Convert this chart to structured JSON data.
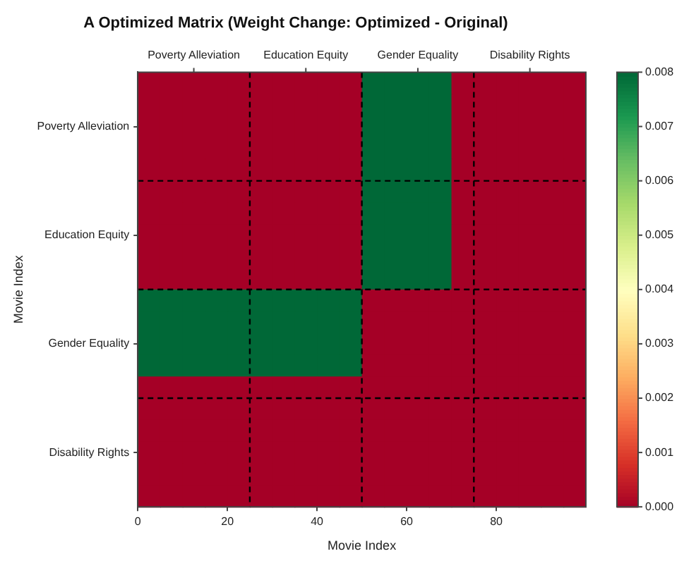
{
  "chart_data": {
    "type": "heatmap",
    "title": "A Optimized Matrix (Weight Change: Optimized - Original)",
    "xlabel": "Movie Index",
    "ylabel": "Movie Index",
    "annotations": [
      "Poverty Alleviation",
      "Education Equity",
      "Gender Equality",
      "Disability Rights"
    ],
    "x": [
      2.5,
      7.5,
      12.5,
      17.5,
      22.5,
      27.5,
      32.5,
      37.5,
      42.5,
      47.5,
      52.5,
      57.5,
      62.5,
      67.5,
      72.5,
      77.5,
      82.5,
      87.5,
      92.5,
      97.5
    ],
    "y_categories": [
      null,
      null,
      "Poverty Alleviation",
      null,
      null,
      null,
      null,
      "Education Equity",
      null,
      null,
      null,
      null,
      "Gender Equality",
      null,
      null,
      null,
      null,
      "Disability Rights",
      null,
      null
    ],
    "cells": [
      [
        0,
        0,
        0,
        0,
        0,
        0,
        0,
        0,
        0,
        0,
        0.008,
        0.008,
        0.008,
        0.008,
        0,
        0,
        0,
        0,
        0,
        0
      ],
      [
        0,
        0,
        0,
        0,
        0,
        0,
        0,
        0,
        0,
        0,
        0.008,
        0.008,
        0.008,
        0.008,
        0,
        0,
        0,
        0,
        0,
        0
      ],
      [
        0,
        0,
        0,
        0,
        0,
        0,
        0,
        0,
        0,
        0,
        0.008,
        0.008,
        0.008,
        0.008,
        0,
        0,
        0,
        0,
        0,
        0
      ],
      [
        0,
        0,
        0,
        0,
        0,
        0,
        0,
        0,
        0,
        0,
        0.008,
        0.008,
        0.008,
        0.008,
        0,
        0,
        0,
        0,
        0,
        0
      ],
      [
        0,
        0,
        0,
        0,
        0,
        0,
        0,
        0,
        0,
        0,
        0.008,
        0.008,
        0.008,
        0.008,
        0,
        0,
        0,
        0,
        0,
        0
      ],
      [
        0,
        0,
        0,
        0,
        0,
        0,
        0,
        0,
        0,
        0,
        0.008,
        0.008,
        0.008,
        0.008,
        0,
        0,
        0,
        0,
        0,
        0
      ],
      [
        0,
        0,
        0,
        0,
        0,
        0,
        0,
        0,
        0,
        0,
        0.008,
        0.008,
        0.008,
        0.008,
        0,
        0,
        0,
        0,
        0,
        0
      ],
      [
        0,
        0,
        0,
        0,
        0,
        0,
        0,
        0,
        0,
        0,
        0.008,
        0.008,
        0.008,
        0.008,
        0,
        0,
        0,
        0,
        0,
        0
      ],
      [
        0,
        0,
        0,
        0,
        0,
        0,
        0,
        0,
        0,
        0,
        0.008,
        0.008,
        0.008,
        0.008,
        0,
        0,
        0,
        0,
        0,
        0
      ],
      [
        0,
        0,
        0,
        0,
        0,
        0,
        0,
        0,
        0,
        0,
        0.008,
        0.008,
        0.008,
        0.008,
        0,
        0,
        0,
        0,
        0,
        0
      ],
      [
        0.008,
        0.008,
        0.008,
        0.008,
        0.008,
        0.008,
        0.008,
        0.008,
        0.008,
        0.008,
        0,
        0,
        0,
        0,
        0,
        0,
        0,
        0,
        0,
        0
      ],
      [
        0.008,
        0.008,
        0.008,
        0.008,
        0.008,
        0.008,
        0.008,
        0.008,
        0.008,
        0.008,
        0,
        0,
        0,
        0,
        0,
        0,
        0,
        0,
        0,
        0
      ],
      [
        0.008,
        0.008,
        0.008,
        0.008,
        0.008,
        0.008,
        0.008,
        0.008,
        0.008,
        0.008,
        0,
        0,
        0,
        0,
        0,
        0,
        0,
        0,
        0,
        0
      ],
      [
        0.008,
        0.008,
        0.008,
        0.008,
        0.008,
        0.008,
        0.008,
        0.008,
        0.008,
        0.008,
        0,
        0,
        0,
        0,
        0,
        0,
        0,
        0,
        0,
        0
      ],
      [
        0,
        0,
        0,
        0,
        0,
        0,
        0,
        0,
        0,
        0,
        0,
        0,
        0,
        0,
        0,
        0,
        0,
        0,
        0,
        0
      ],
      [
        0,
        0,
        0,
        0,
        0,
        0,
        0,
        0,
        0,
        0,
        0,
        0,
        0,
        0,
        0,
        0,
        0,
        0,
        0,
        0
      ],
      [
        0,
        0,
        0,
        0,
        0,
        0,
        0,
        0,
        0,
        0,
        0,
        0,
        0,
        0,
        0,
        0,
        0,
        0,
        0,
        0
      ],
      [
        0,
        0,
        0,
        0,
        0,
        0,
        0,
        0,
        0,
        0,
        0,
        0,
        0,
        0,
        0,
        0,
        0,
        0,
        0,
        0
      ],
      [
        0,
        0,
        0,
        0,
        0,
        0,
        0,
        0,
        0,
        0,
        0,
        0,
        0,
        0,
        0,
        0,
        0,
        0,
        0,
        0
      ],
      [
        0,
        0,
        0,
        0,
        0,
        0,
        0,
        0,
        0,
        0,
        0,
        0,
        0,
        0,
        0,
        0,
        0,
        0,
        0,
        0
      ]
    ],
    "xlim": [
      0,
      100
    ],
    "xticks": [
      0,
      20,
      40,
      60,
      80
    ],
    "clim": [
      0,
      0.008
    ],
    "cticks": [
      {
        "value": 0,
        "label": "0.000"
      },
      {
        "value": 0.001,
        "label": "0.001"
      },
      {
        "value": 0.002,
        "label": "0.002"
      },
      {
        "value": 0.003,
        "label": "0.003"
      },
      {
        "value": 0.004,
        "label": "0.004"
      },
      {
        "value": 0.005,
        "label": "0.005"
      },
      {
        "value": 0.006,
        "label": "0.006"
      },
      {
        "value": 0.007,
        "label": "0.007"
      },
      {
        "value": 0.008,
        "label": "0.008"
      }
    ],
    "ref_lines": [
      {
        "axis": "x",
        "value": 25,
        "color": "#000000",
        "line_style": "dashed"
      },
      {
        "axis": "x",
        "value": 50,
        "color": "#000000",
        "line_style": "dashed"
      },
      {
        "axis": "x",
        "value": 75,
        "color": "#000000",
        "line_style": "dashed"
      }
    ]
  }
}
